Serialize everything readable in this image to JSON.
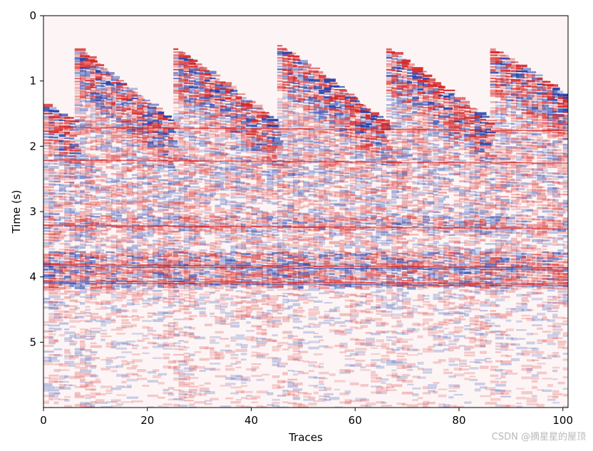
{
  "chart_data": {
    "type": "heatmap",
    "title": "",
    "xlabel": "Traces",
    "ylabel": "Time (s)",
    "xlim": [
      0,
      101
    ],
    "ylim": [
      0,
      6
    ],
    "y_inverted": true,
    "x_ticks": [
      0,
      20,
      40,
      60,
      80,
      100
    ],
    "y_ticks": [
      0,
      1,
      2,
      3,
      4,
      5
    ],
    "colormap": "seismic",
    "colors": {
      "positive": "#d62728",
      "negative": "#1f3fae",
      "zero": "#ffffff",
      "background_tint": "#fdf5f5"
    },
    "shot_gathers": [
      {
        "first_trace": 0,
        "last_trace": 6,
        "onset_start_s": 1.35,
        "onset_end_s": 1.65
      },
      {
        "first_trace": 6,
        "last_trace": 25,
        "onset_start_s": 0.5,
        "onset_end_s": 1.65
      },
      {
        "first_trace": 25,
        "last_trace": 45,
        "onset_start_s": 0.5,
        "onset_end_s": 1.65
      },
      {
        "first_trace": 45,
        "last_trace": 66,
        "onset_start_s": 0.45,
        "onset_end_s": 1.65
      },
      {
        "first_trace": 66,
        "last_trace": 86,
        "onset_start_s": 0.5,
        "onset_end_s": 1.65
      },
      {
        "first_trace": 86,
        "last_trace": 101,
        "onset_start_s": 0.5,
        "onset_end_s": 1.25
      }
    ],
    "strong_reflector_times_s": [
      1.7,
      2.2,
      3.2,
      3.8,
      4.05
    ],
    "grid": false,
    "legend": "none"
  },
  "watermark": "CSDN @摘星星的屋顶"
}
